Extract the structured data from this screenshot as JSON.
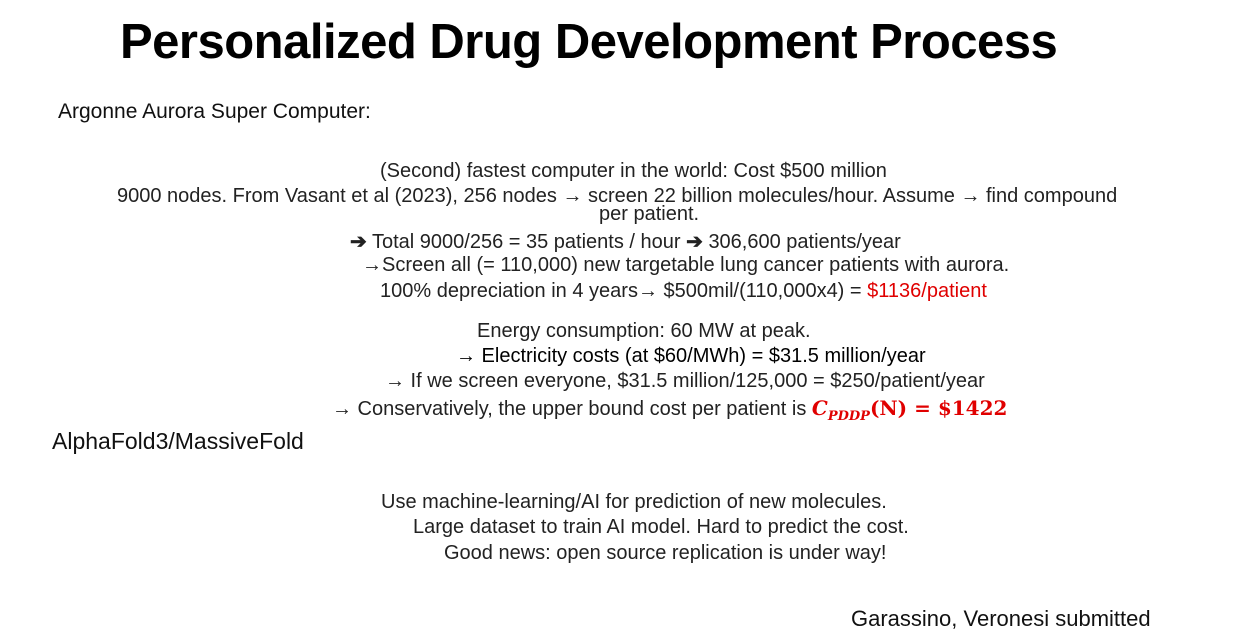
{
  "title": "Personalized Drug Development Process",
  "aurora": {
    "heading": "Argonne Aurora Super Computer:",
    "line1": "(Second) fastest computer in the world: Cost $500 million",
    "line2a": "9000 nodes. From Vasant et al (2023), 256 nodes → screen 22 billion molecules/hour. Assume → find compound",
    "line2b": "per patient.",
    "line3_arrow": "➔",
    "line3_mid": "Total 9000/256 = 35 patients / hour",
    "line3_arrow2": "➔",
    "line3_end": "306,600 patients/year",
    "line4": "→Screen all (= 110,000) new targetable lung cancer patients with aurora.",
    "line5_text": "100% depreciation in 4 years→ $500mil/(110,000x4) = ",
    "line5_red": "$1136/patient",
    "energy1": "Energy consumption: 60 MW at peak.",
    "energy2": "→ Electricity costs (at $60/MWh) = $31.5 million/year",
    "energy3": "→ If we screen everyone, $31.5 million/125,000 = $250/patient/year",
    "energy4_text": "→ Conservatively, the upper bound cost per patient is ",
    "formula_main": "C",
    "formula_sub": "PDDP",
    "formula_rest": "(N) = ",
    "formula_value": "$1422"
  },
  "alphafold": {
    "heading": "AlphaFold3/MassiveFold",
    "line1": "Use machine-learning/AI for prediction of new molecules.",
    "line2": "Large dataset to train AI model. Hard to predict the cost.",
    "line3": "Good news: open source replication is under way!"
  },
  "footer": "Garassino, Veronesi submitted"
}
